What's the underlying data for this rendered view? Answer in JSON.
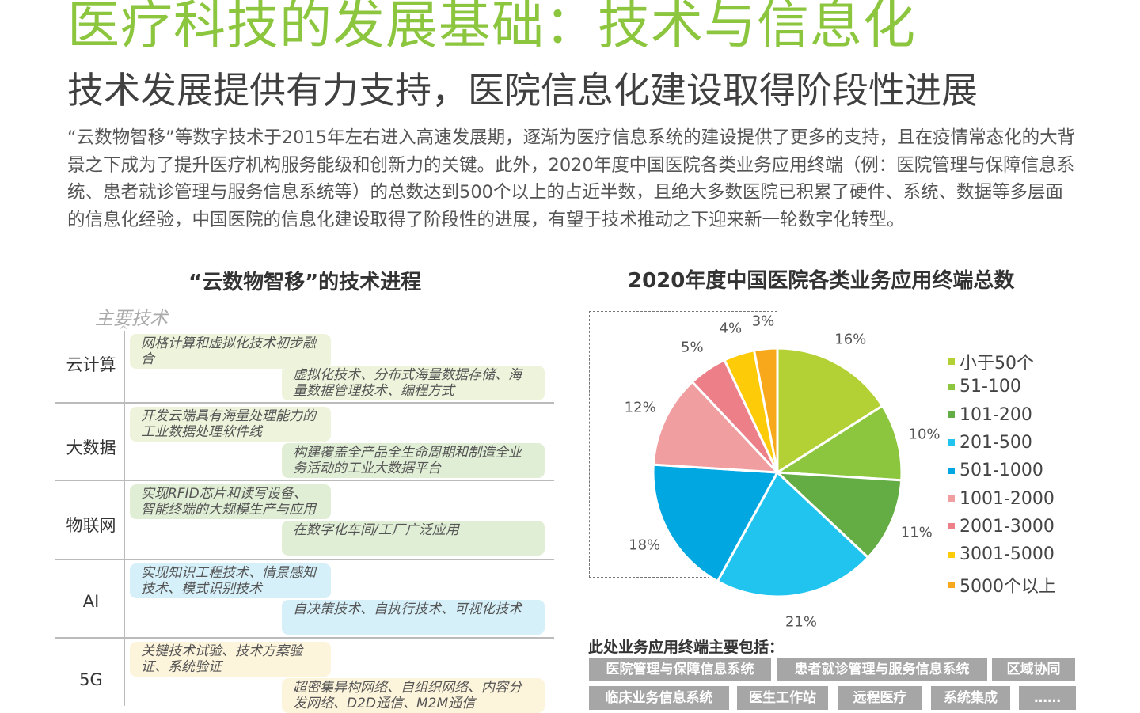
{
  "header": {
    "title": "医疗科技的发展基础：技术与信息化",
    "subtitle": "技术发展提供有力支持，医院信息化建设取得阶段性进展",
    "paragraph": "“云数物智移”等数字技术于2015年左右进入高速发展期，逐渐为医疗信息系统的建设提供了更多的支持，且在疫情常态化的大背景之下成为了提升医疗机构服务能级和创新力的关键。此外，2020年度中国医院各类业务应用终端（例：医院管理与保障信息系统、患者就诊管理与服务信息系统等）的总数达到500个以上的占近半数，且绝大多数医院已积累了硬件、系统、数据等多层面的信息化经验，中国医院的信息化建设取得了阶段性的进展，有望于技术推动之下迎来新一轮数字化转型。"
  },
  "timeline": {
    "title": "“云数物智移”的技术进程",
    "axis_label": "主要技术",
    "rows": [
      {
        "label": "云计算",
        "items": [
          "网格计算和虚拟化技术初步融合",
          "虚拟化技术、分布式海量数据存储、海量数据管理技术、编程方式"
        ]
      },
      {
        "label": "大数据",
        "items": [
          "开发云端具有海量处理能力的工业数据处理软件线",
          "构建覆盖全产品全生命周期和制造全业务活动的工业大数据平台"
        ]
      },
      {
        "label": "物联网",
        "items": [
          "实现RFID芯片和读写设备、智能终端的大规模生产与应用",
          "在数字化车间/工厂广泛应用"
        ]
      },
      {
        "label": "AI",
        "items": [
          "实现知识工程技术、情景感知技术、模式识别技术",
          "自决策技术、自执行技术、可视化技术"
        ]
      },
      {
        "label": "5G",
        "items": [
          "关键技术试验、技术方案验证、系统验证",
          "超密集异构网络、自组织网络、内容分发网络、D2D通信、M2M通信"
        ]
      }
    ]
  },
  "chart_data": {
    "type": "pie",
    "title": "2020年度中国医院各类业务应用终端总数",
    "categories": [
      "小于50个",
      "51-100",
      "101-200",
      "201-500",
      "501-1000",
      "1001-2000",
      "2001-3000",
      "3001-5000",
      "5000个以上"
    ],
    "values": [
      16,
      10,
      11,
      21,
      18,
      12,
      5,
      4,
      3
    ],
    "labels": [
      "16%",
      "10%",
      "11%",
      "21%",
      "18%",
      "12%",
      "5%",
      "4%",
      "3%"
    ],
    "unit": "%",
    "colors": [
      "#b3d135",
      "#8cc63e",
      "#64ad45",
      "#21c4ef",
      "#00a7e1",
      "#f09ea0",
      "#ec7f87",
      "#fecb08",
      "#f7a81b"
    ],
    "legend_position": "right",
    "start_angle": "12 o'clock, clockwise"
  },
  "terminals": {
    "title": "此处业务应用终端主要包括：",
    "tags": [
      "医院管理与保障信息系统",
      "患者就诊管理与服务信息系统",
      "区域协同",
      "临床业务信息系统",
      "医生工作站",
      "远程医疗",
      "系统集成",
      "……"
    ]
  }
}
